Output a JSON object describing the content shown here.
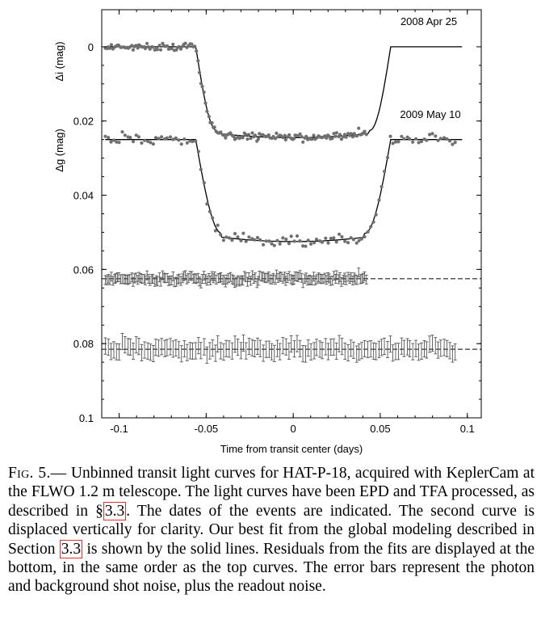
{
  "chart_data": {
    "type": "scatter",
    "xlabel": "Time from transit center (days)",
    "ylabel_upper": "Δi (mag)",
    "ylabel_lower": "Δg (mag)",
    "xlim": [
      -0.11,
      0.108
    ],
    "ylim": [
      0.1,
      -0.01
    ],
    "xticks": [
      -0.1,
      -0.05,
      0,
      0.05,
      0.1
    ],
    "xtick_labels": [
      "-0.1",
      "-0.05",
      "0",
      "0.05",
      "0.1"
    ],
    "yticks": [
      0,
      0.02,
      0.04,
      0.06,
      0.08,
      0.1
    ],
    "ytick_labels": [
      "0",
      "0.02",
      "0.04",
      "0.06",
      "0.08",
      "0.1"
    ],
    "series": [
      {
        "name": "2008 Apr 25",
        "label": "2008 Apr 25",
        "model": {
          "baseline": 0.0,
          "depth": 0.0245,
          "t14": 0.112,
          "t12": 0.012
        },
        "x_range": [
          -0.108,
          0.042
        ],
        "residual_offset": 0.0625,
        "n_points": 170,
        "error_bar": 0.0012
      },
      {
        "name": "2009 May 10",
        "label": "2009 May 10",
        "model": {
          "baseline": 0.025,
          "depth": 0.0275,
          "t14": 0.112,
          "t12": 0.015
        },
        "x_range": [
          -0.108,
          0.093
        ],
        "residual_offset": 0.0815,
        "n_points": 125,
        "error_bar": 0.0022
      }
    ]
  },
  "caption": {
    "fig": "Fig. 5.—",
    "t1": " Unbinned transit light curves for HAT-P-18, acquired with KeplerCam at the FLWO 1.2 m telescope. The light curves have been EPD and TFA processed, as described in §",
    "ref1": "3.3",
    "t2": ". The dates of the events are indicated. The second curve is displaced vertically for clarity. Our best fit from the global modeling described in Section ",
    "ref2": "3.3",
    "t3": " is shown by the solid lines. Residuals from the fits are displayed at the bottom, in the same order as the top curves. The error bars represent the photon and background shot noise, plus the readout noise."
  }
}
